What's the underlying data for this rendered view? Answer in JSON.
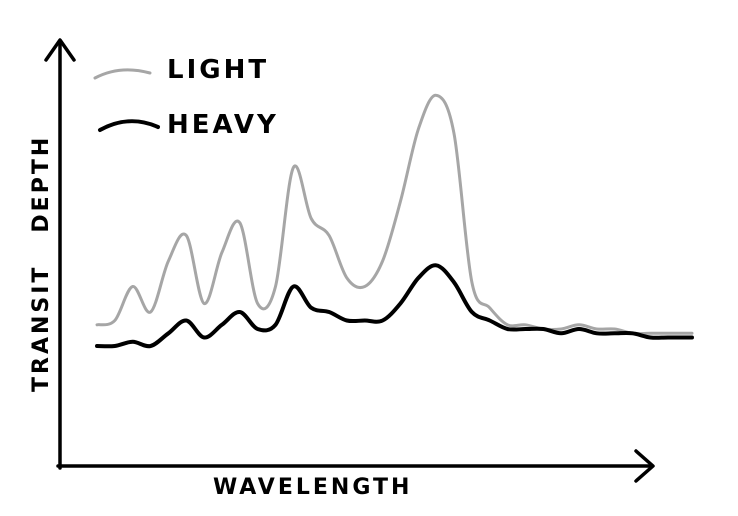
{
  "chart_data": {
    "type": "line",
    "title": "",
    "xlabel": "WAVELENGTH",
    "ylabel": "TRANSIT   DEPTH",
    "x": [
      0,
      0.03,
      0.06,
      0.09,
      0.12,
      0.15,
      0.18,
      0.21,
      0.24,
      0.27,
      0.3,
      0.33,
      0.36,
      0.39,
      0.42,
      0.45,
      0.48,
      0.51,
      0.54,
      0.57,
      0.6,
      0.63,
      0.66,
      0.69,
      0.72,
      0.75,
      0.78,
      0.81,
      0.84,
      0.87,
      0.9,
      0.93,
      0.96,
      1.0
    ],
    "xlim": [
      0,
      1
    ],
    "ylim": [
      0,
      1
    ],
    "grid": false,
    "legend": {
      "position": "top-left"
    },
    "series": [
      {
        "name": "LIGHT",
        "color": "#a6a6a6",
        "values": [
          0.33,
          0.34,
          0.42,
          0.36,
          0.48,
          0.54,
          0.38,
          0.5,
          0.57,
          0.38,
          0.42,
          0.7,
          0.58,
          0.54,
          0.44,
          0.42,
          0.48,
          0.62,
          0.79,
          0.87,
          0.78,
          0.43,
          0.37,
          0.33,
          0.33,
          0.32,
          0.32,
          0.33,
          0.32,
          0.32,
          0.31,
          0.31,
          0.31,
          0.31
        ]
      },
      {
        "name": "HEAVY",
        "color": "#000000",
        "values": [
          0.28,
          0.28,
          0.29,
          0.28,
          0.31,
          0.34,
          0.3,
          0.33,
          0.36,
          0.32,
          0.33,
          0.42,
          0.37,
          0.36,
          0.34,
          0.34,
          0.34,
          0.38,
          0.44,
          0.47,
          0.43,
          0.36,
          0.34,
          0.32,
          0.32,
          0.32,
          0.31,
          0.32,
          0.31,
          0.31,
          0.31,
          0.3,
          0.3,
          0.3
        ]
      }
    ]
  }
}
